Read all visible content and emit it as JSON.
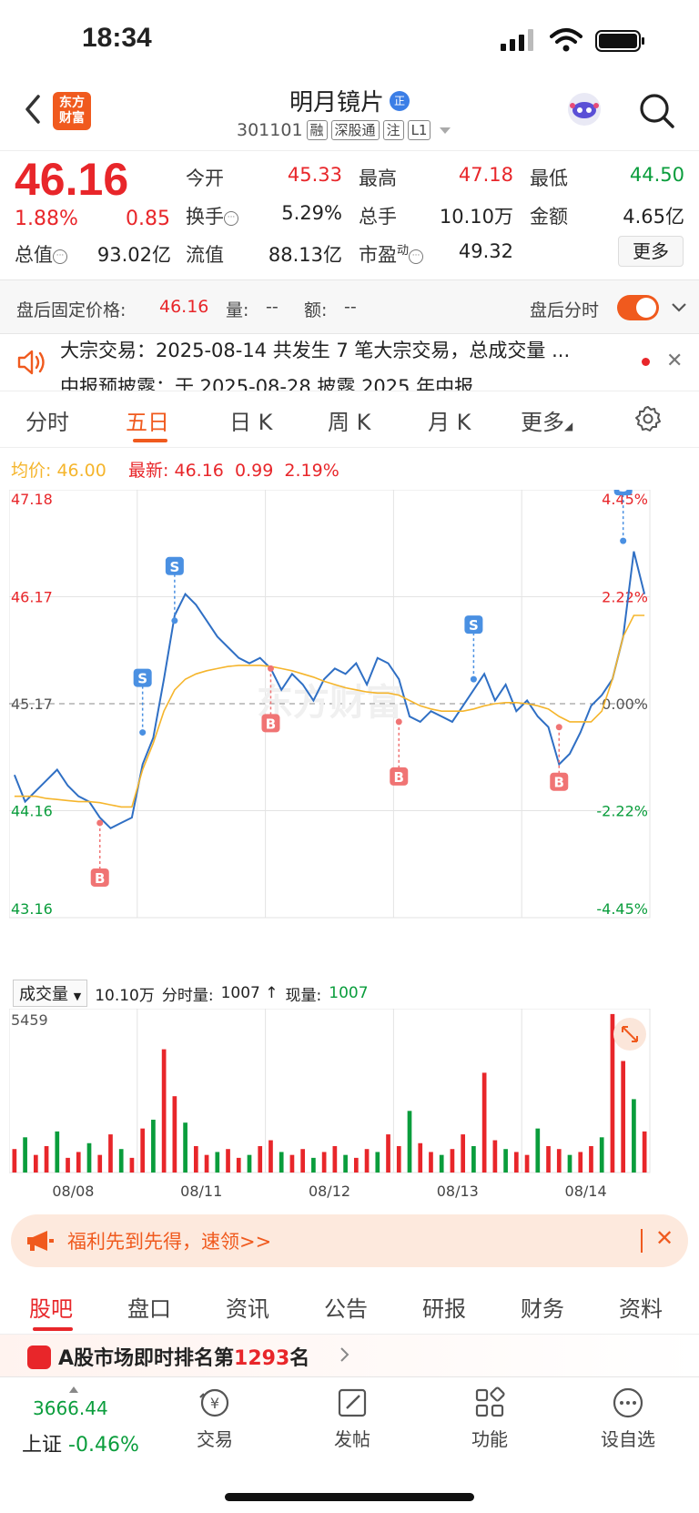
{
  "status_bar": {
    "time": "18:34"
  },
  "header": {
    "brand_logo_text": "东方\n财富",
    "stock_name": "明月镜片",
    "verified_badge": "正",
    "stock_code": "301101",
    "tags": [
      "融",
      "深股通",
      "注",
      "L1"
    ]
  },
  "quote": {
    "last_price": "46.16",
    "change_pct": "1.88%",
    "change_amt": "0.85",
    "fields": {
      "open_label": "今开",
      "open_value": "45.33",
      "high_label": "最高",
      "high_value": "47.18",
      "low_label": "最低",
      "low_value": "44.50",
      "turnover_label": "换手",
      "turnover_value": "5.29%",
      "volume_label": "总手",
      "volume_value": "10.10万",
      "amount_label": "金额",
      "amount_value": "4.65亿",
      "mktcap_label": "总值",
      "mktcap_value": "93.02亿",
      "float_label": "流值",
      "float_value": "88.13亿",
      "pe_label": "市盈",
      "pe_sup": "动",
      "pe_value": "49.32"
    },
    "more_label": "更多"
  },
  "after_hours": {
    "price_label": "盘后固定价格:",
    "price_value": "46.16",
    "vol_label": "量:",
    "vol_value": "--",
    "amt_label": "额:",
    "amt_value": "--",
    "timeshare_label": "盘后分时",
    "toggle_on": true
  },
  "announcement": {
    "line1": "大宗交易：2025-08-14 共发生 7 笔大宗交易，总成交量 ...",
    "line2": "中报预披露：于 2025-08-28 披露 2025 年中报"
  },
  "chart_tabs": {
    "items": [
      "分时",
      "五日",
      "日 K",
      "周 K",
      "月 K",
      "更多"
    ],
    "active_index": 1
  },
  "avg_row": {
    "avg_label": "均价:",
    "avg_value": "46.00",
    "latest_label": "最新:",
    "latest_value": "46.16",
    "latest_change": "0.99",
    "latest_pct": "2.19%"
  },
  "volume_header": {
    "select_label": "成交量",
    "total": "10.10万",
    "tick_label": "分时量:",
    "tick_value": "1007 ↑",
    "current_label": "现量:",
    "current_value": "1007"
  },
  "chart_data": {
    "type": "line",
    "title": "",
    "x_labels": [
      "08/08",
      "08/11",
      "08/12",
      "08/13",
      "08/14"
    ],
    "y_left_ticks": [
      "47.18",
      "46.17",
      "45.17",
      "44.16",
      "43.16"
    ],
    "y_right_ticks": [
      "4.45%",
      "2.22%",
      "0.00%",
      "-2.22%",
      "-4.45%"
    ],
    "ylim": [
      43.16,
      47.18
    ],
    "reference_price": 45.17,
    "watermark": "东方财富",
    "series": [
      {
        "values": [
          44.5,
          44.25,
          44.35,
          44.45,
          44.55,
          44.4,
          44.3,
          44.25,
          44.1,
          44.0,
          44.05,
          44.1,
          44.6,
          44.85,
          45.4,
          46.0,
          46.2,
          46.1,
          45.95,
          45.8,
          45.7,
          45.6,
          45.55,
          45.6,
          45.5,
          45.3,
          45.45,
          45.35,
          45.2,
          45.4,
          45.5,
          45.45,
          45.55,
          45.35,
          45.6,
          45.55,
          45.4,
          45.05,
          45.0,
          45.1,
          45.05,
          45.0,
          45.15,
          45.3,
          45.45,
          45.2,
          45.35,
          45.1,
          45.2,
          45.05,
          44.95,
          44.6,
          44.7,
          44.9,
          45.15,
          45.25,
          45.4,
          45.8,
          46.6,
          46.2
        ]
      },
      {
        "values": [
          44.3,
          44.3,
          44.3,
          44.28,
          44.27,
          44.26,
          44.25,
          44.25,
          44.24,
          44.22,
          44.2,
          44.2,
          44.55,
          44.8,
          45.1,
          45.3,
          45.4,
          45.45,
          45.48,
          45.5,
          45.52,
          45.53,
          45.53,
          45.53,
          45.52,
          45.5,
          45.48,
          45.45,
          45.42,
          45.38,
          45.35,
          45.32,
          45.3,
          45.28,
          45.27,
          45.27,
          45.25,
          45.2,
          45.15,
          45.12,
          45.1,
          45.1,
          45.1,
          45.12,
          45.15,
          45.17,
          45.18,
          45.18,
          45.17,
          45.15,
          45.12,
          45.05,
          45.0,
          45.0,
          45.0,
          45.1,
          45.4,
          45.8,
          46.0,
          46.0
        ]
      }
    ],
    "markers": [
      {
        "type": "B",
        "x_index": 8,
        "price": 44.05
      },
      {
        "type": "S",
        "x_index": 12,
        "price": 44.9
      },
      {
        "type": "S",
        "x_index": 15,
        "price": 45.95
      },
      {
        "type": "B",
        "x_index": 24,
        "price": 45.5
      },
      {
        "type": "B",
        "x_index": 36,
        "price": 45.0
      },
      {
        "type": "S",
        "x_index": 43,
        "price": 45.4
      },
      {
        "type": "B",
        "x_index": 51,
        "price": 44.95
      },
      {
        "type": "S",
        "x_index": 57,
        "price": 46.7
      }
    ],
    "volume": {
      "max_label": "5459",
      "ymax": 5459,
      "values": [
        800,
        1200,
        600,
        900,
        1400,
        500,
        700,
        1000,
        600,
        1300,
        800,
        500,
        1500,
        1800,
        4200,
        2600,
        1700,
        900,
        600,
        700,
        800,
        500,
        600,
        900,
        1100,
        700,
        600,
        800,
        500,
        700,
        900,
        600,
        500,
        800,
        700,
        1300,
        900,
        2100,
        1000,
        700,
        600,
        800,
        1300,
        900,
        3400,
        1100,
        800,
        700,
        600,
        1500,
        900,
        800,
        600,
        700,
        900,
        1200,
        5400,
        3800,
        2500,
        1400
      ]
    }
  },
  "promo": {
    "text": "福利先到先得，速领>>"
  },
  "bottom_tabs": {
    "items": [
      "股吧",
      "盘口",
      "资讯",
      "公告",
      "研报",
      "财务",
      "资料"
    ],
    "active_index": 0
  },
  "rank": {
    "prefix": "A股市场即时排名第",
    "rank": "1293",
    "suffix": "名"
  },
  "bottom_nav": {
    "index_value": "3666.44",
    "index_label": "上证",
    "index_change": "-0.46%",
    "items": [
      "交易",
      "发帖",
      "功能",
      "设自选"
    ]
  },
  "colors": {
    "up": "#e8262a",
    "down": "#0a9d3c",
    "accent": "#f05a1e",
    "price_line": "#2f6fc4",
    "avg_line": "#f5b52c"
  }
}
